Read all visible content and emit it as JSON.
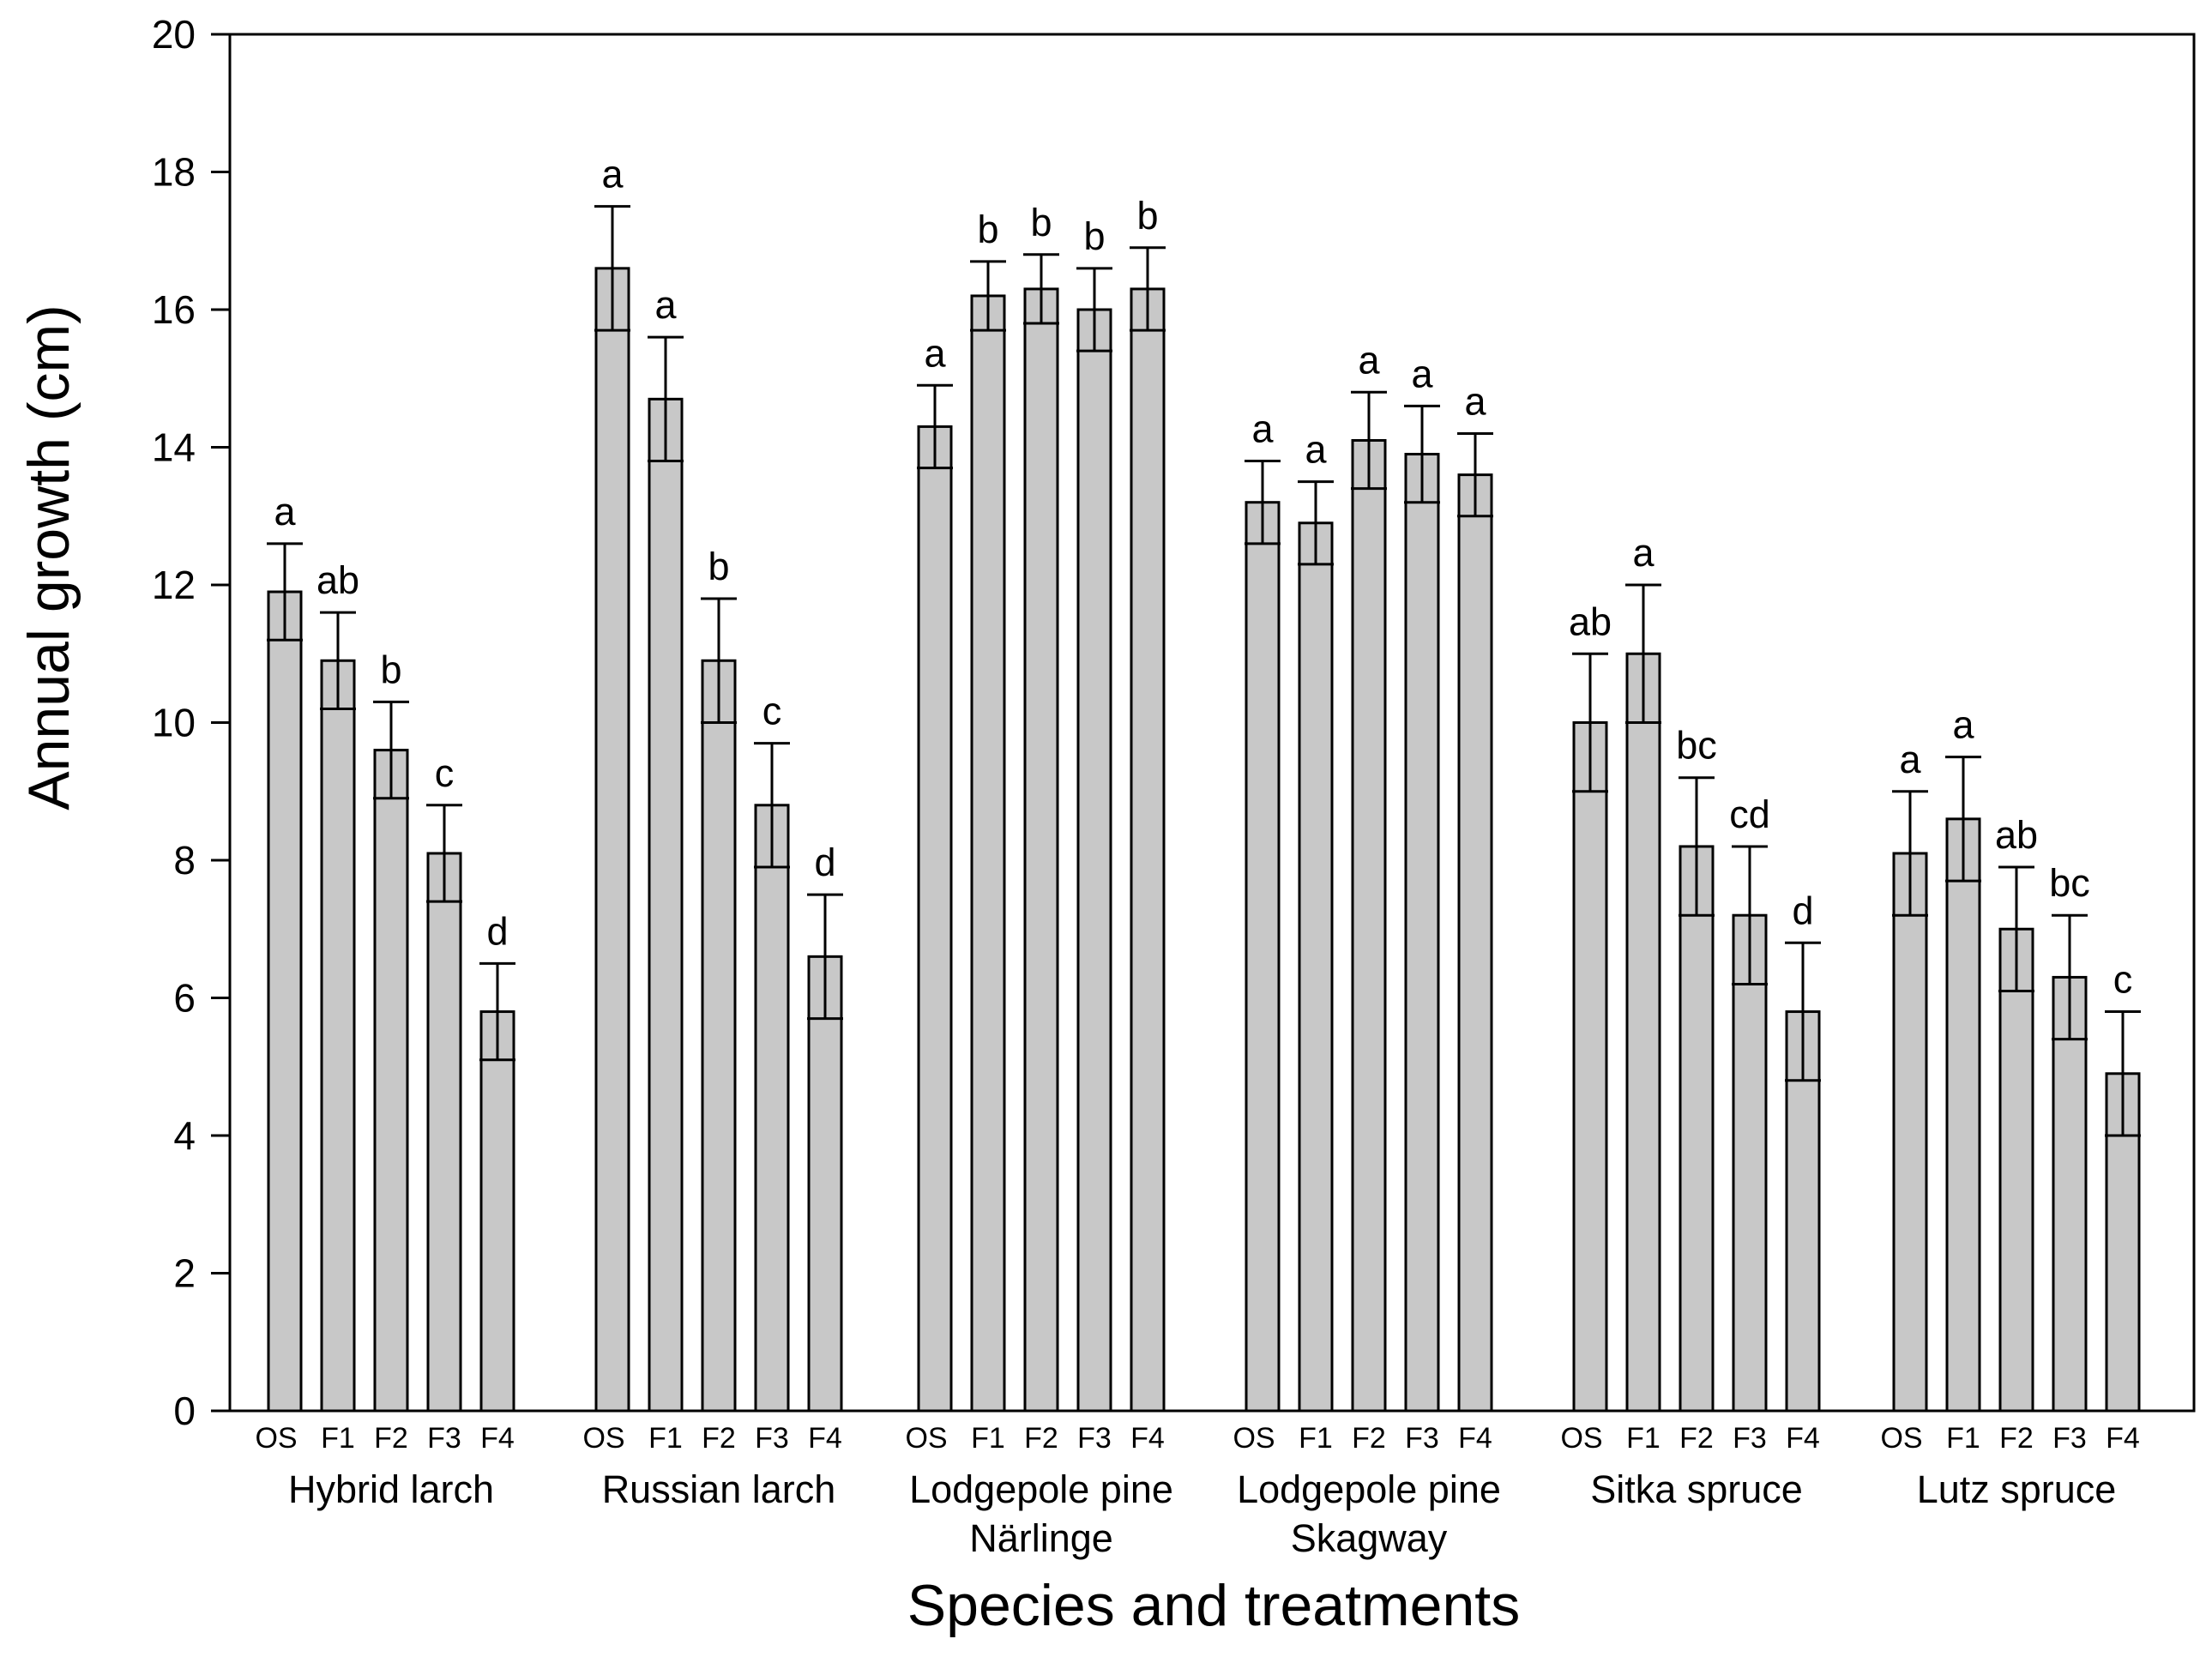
{
  "chart_data": {
    "type": "bar",
    "title": "",
    "xlabel": "Species and treatments",
    "ylabel": "Annual growth (cm)",
    "ylim": [
      0,
      20
    ],
    "yticks": [
      0,
      2,
      4,
      6,
      8,
      10,
      12,
      14,
      16,
      18,
      20
    ],
    "grid": false,
    "legend": "none",
    "bar_color": "#c8c8c8",
    "treatments": [
      "OS",
      "F1",
      "F2",
      "F3",
      "F4"
    ],
    "groups": [
      {
        "name": "Hybrid larch",
        "name_lines": [
          "Hybrid larch"
        ],
        "values": [
          11.9,
          10.9,
          9.6,
          8.1,
          5.8
        ],
        "errors": [
          0.7,
          0.7,
          0.7,
          0.7,
          0.7
        ],
        "letters": [
          "a",
          "ab",
          "b",
          "c",
          "d"
        ]
      },
      {
        "name": "Russian larch",
        "name_lines": [
          "Russian larch"
        ],
        "values": [
          16.6,
          14.7,
          10.9,
          8.8,
          6.6
        ],
        "errors": [
          0.9,
          0.9,
          0.9,
          0.9,
          0.9
        ],
        "letters": [
          "a",
          "a",
          "b",
          "c",
          "d"
        ]
      },
      {
        "name": "Lodgepole pine Närlinge",
        "name_lines": [
          "Lodgepole pine",
          "Närlinge"
        ],
        "values": [
          14.3,
          16.2,
          16.3,
          16.0,
          16.3
        ],
        "errors": [
          0.6,
          0.5,
          0.5,
          0.6,
          0.6
        ],
        "letters": [
          "a",
          "b",
          "b",
          "b",
          "b"
        ]
      },
      {
        "name": "Lodgepole pine Skagway",
        "name_lines": [
          "Lodgepole pine",
          "Skagway"
        ],
        "values": [
          13.2,
          12.9,
          14.1,
          13.9,
          13.6
        ],
        "errors": [
          0.6,
          0.6,
          0.7,
          0.7,
          0.6
        ],
        "letters": [
          "a",
          "a",
          "a",
          "a",
          "a"
        ]
      },
      {
        "name": "Sitka spruce",
        "name_lines": [
          "Sitka spruce"
        ],
        "values": [
          10.0,
          11.0,
          8.2,
          7.2,
          5.8
        ],
        "errors": [
          1.0,
          1.0,
          1.0,
          1.0,
          1.0
        ],
        "letters": [
          "ab",
          "a",
          "bc",
          "cd",
          "d"
        ]
      },
      {
        "name": "Lutz spruce",
        "name_lines": [
          "Lutz spruce"
        ],
        "values": [
          8.1,
          8.6,
          7.0,
          6.3,
          4.9
        ],
        "errors": [
          0.9,
          0.9,
          0.9,
          0.9,
          0.9
        ],
        "letters": [
          "a",
          "a",
          "ab",
          "bc",
          "c"
        ]
      }
    ]
  }
}
